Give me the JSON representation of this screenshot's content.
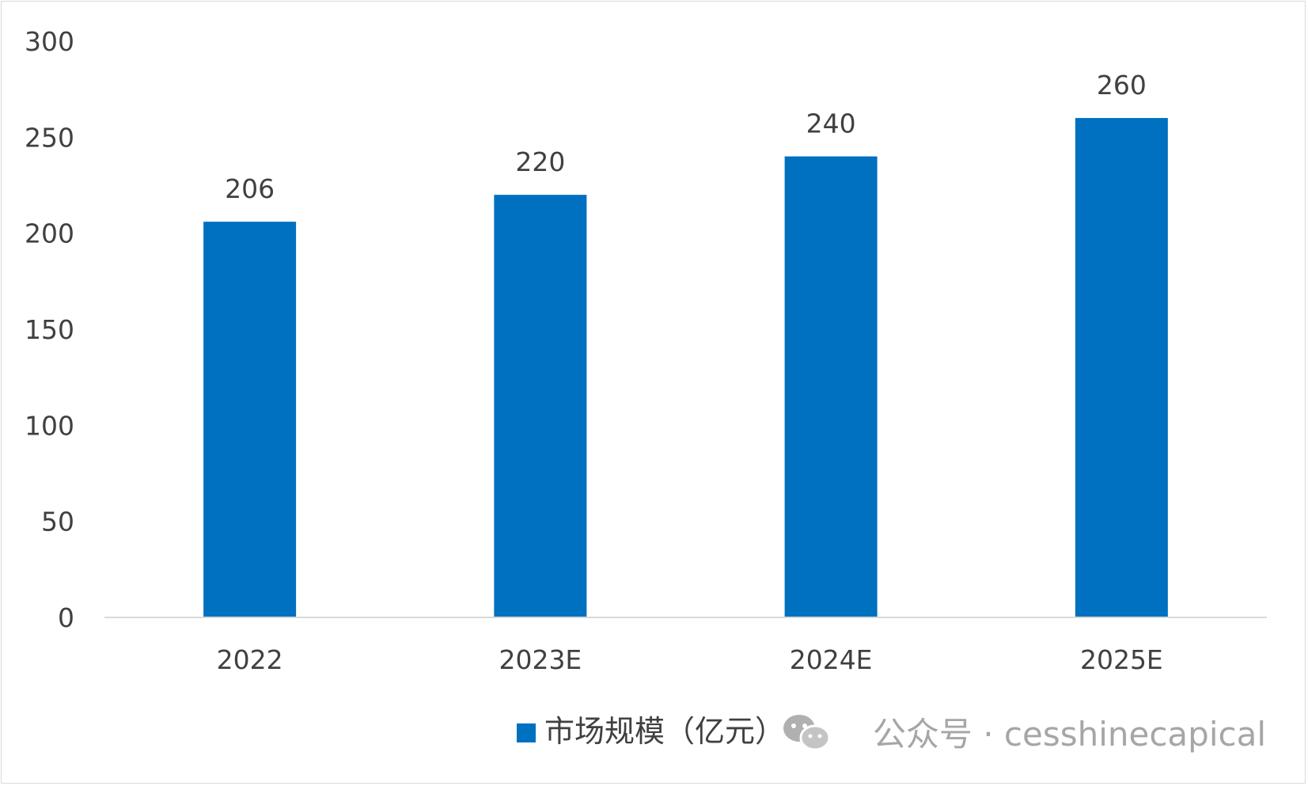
{
  "chart_data": {
    "type": "bar",
    "categories": [
      "2022",
      "2023E",
      "2024E",
      "2025E"
    ],
    "series": [
      {
        "name": "市场规模（亿元）",
        "values": [
          206,
          220,
          240,
          260
        ],
        "color": "#0070c0"
      }
    ],
    "ylim": [
      0,
      300
    ],
    "yticks": [
      "0",
      "50",
      "100",
      "150",
      "200",
      "250",
      "300"
    ],
    "data_labels": [
      "206",
      "220",
      "240",
      "260"
    ],
    "grid": false,
    "legend_position": "bottom-right"
  },
  "watermark": {
    "text": "公众号 · cesshinecapical",
    "icon": "wechat-icon"
  },
  "colors": {
    "bar": "#0070c0",
    "axis": "#d9d9d9",
    "text": "#404040",
    "watermark": "#a6a6a6"
  }
}
